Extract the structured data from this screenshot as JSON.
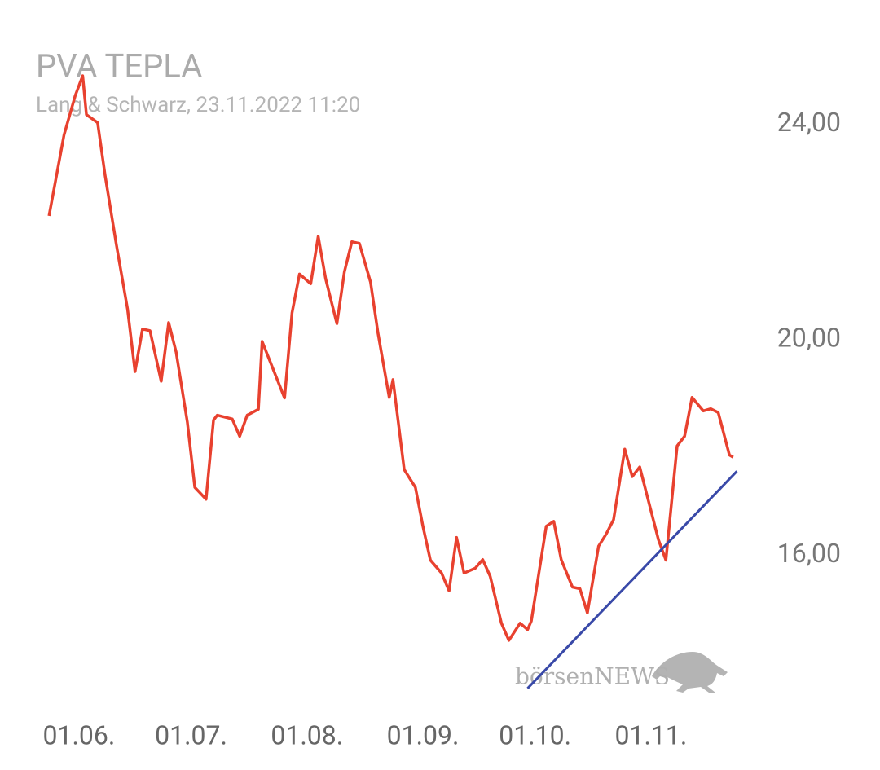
{
  "chart_data": {
    "type": "line",
    "title": "PVA TEPLA",
    "subtitle": "Lang & Schwarz, 23.11.2022 11:20",
    "watermark": "börsenNEWS",
    "color": "#e8412f",
    "x": [
      "24.05.",
      "28.05.",
      "31.05.",
      "02.06.",
      "03.06.",
      "06.06.",
      "08.06.",
      "11.06.",
      "14.06.",
      "16.06.",
      "18.06.",
      "20.06.",
      "23.06.",
      "25.06.",
      "27.06.",
      "30.06.",
      "02.07.",
      "05.07.",
      "07.07.",
      "08.07.",
      "12.07.",
      "14.07.",
      "16.07.",
      "19.07.",
      "20.07.",
      "26.07.",
      "28.07.",
      "30.07.",
      "02.08.",
      "04.08.",
      "06.08.",
      "09.08.",
      "11.08.",
      "13.08.",
      "15.08.",
      "18.08.",
      "20.08.",
      "23.08.",
      "24.08.",
      "27.08.",
      "30.08.",
      "01.09.",
      "03.09.",
      "06.09.",
      "08.09.",
      "10.09.",
      "12.09.",
      "15.09.",
      "17.09.",
      "19.09.",
      "22.09.",
      "24.09.",
      "27.09.",
      "29.09.",
      "30.09.",
      "04.10.",
      "06.10.",
      "08.10.",
      "11.10.",
      "13.10.",
      "15.10.",
      "18.10.",
      "20.10.",
      "22.10.",
      "25.10.",
      "27.10.",
      "29.10.",
      "31.10.",
      "03.11.",
      "05.11.",
      "08.11.",
      "10.11.",
      "12.11.",
      "15.11.",
      "17.11.",
      "19.11.",
      "22.11.",
      "23.11."
    ],
    "values": [
      22.3,
      23.8,
      24.53,
      24.9,
      24.18,
      24.03,
      23.05,
      21.77,
      20.57,
      19.41,
      20.2,
      20.17,
      19.23,
      20.32,
      19.77,
      18.47,
      17.26,
      17.04,
      18.51,
      18.6,
      18.53,
      18.21,
      18.6,
      18.71,
      19.97,
      18.92,
      20.5,
      21.22,
      21.04,
      21.92,
      21.13,
      20.3,
      21.26,
      21.82,
      21.79,
      21.07,
      20.12,
      18.93,
      19.26,
      17.59,
      17.26,
      16.54,
      15.91,
      15.67,
      15.34,
      16.33,
      15.67,
      15.76,
      15.92,
      15.61,
      14.74,
      14.42,
      14.74,
      14.62,
      14.78,
      16.54,
      16.63,
      15.92,
      15.41,
      15.38,
      14.93,
      16.17,
      16.39,
      16.66,
      17.97,
      17.46,
      17.64,
      17.1,
      16.29,
      15.91,
      18.03,
      18.21,
      18.93,
      18.68,
      18.72,
      18.65,
      17.86,
      17.82
    ],
    "trendline": {
      "x": [
        "29.09.",
        "24.11."
      ],
      "values": [
        13.53,
        17.56
      ],
      "color": "#3949a8"
    },
    "xlim": [
      "22.05.",
      "25.11."
    ],
    "xticks": [
      "01.06.",
      "01.07.",
      "01.08.",
      "01.09.",
      "01.10.",
      "01.11."
    ],
    "ylim": [
      13.3,
      25.4
    ],
    "yticks": [
      {
        "value": 16,
        "label": "16,00"
      },
      {
        "value": 20,
        "label": "20,00"
      },
      {
        "value": 24,
        "label": "24,00"
      }
    ]
  }
}
